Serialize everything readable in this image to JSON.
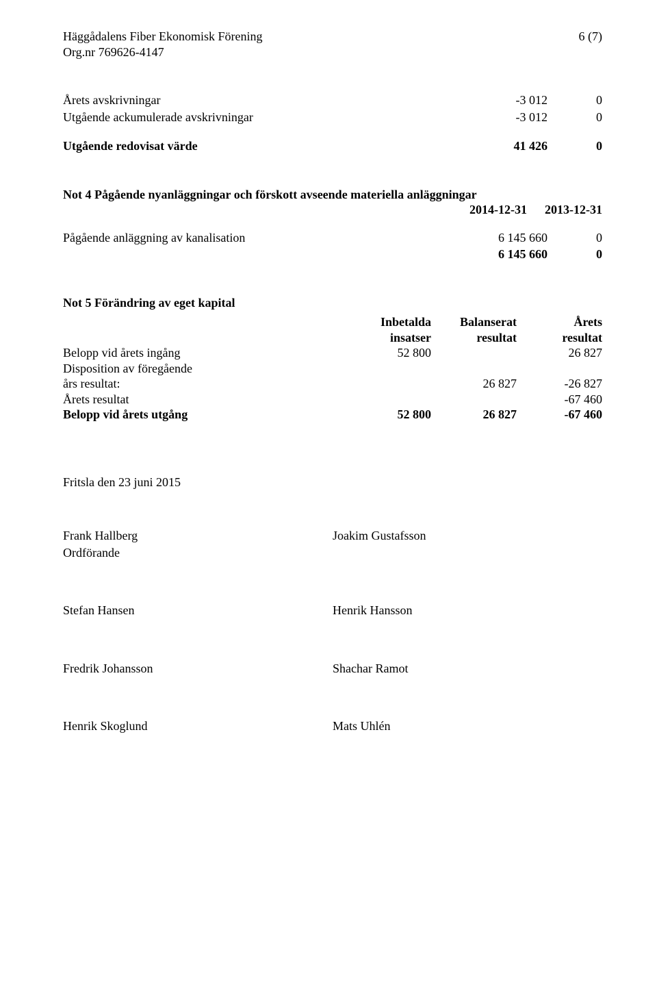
{
  "header": {
    "org_name": "Häggådalens Fiber Ekonomisk Förening",
    "org_number_line": "Org.nr 769626-4147",
    "page_number": "6 (7)"
  },
  "depreciation": {
    "r1": {
      "label": "Årets avskrivningar",
      "c1": "-3 012",
      "c2": "0"
    },
    "r2": {
      "label": "Utgående ackumulerade avskrivningar",
      "c1": "-3 012",
      "c2": "0"
    },
    "r3": {
      "label": "Utgående redovisat värde",
      "c1": "41 426",
      "c2": "0"
    }
  },
  "note4": {
    "title": "Not 4 Pågående nyanläggningar och förskott avseende materiella anläggningar",
    "date1": "2014-12-31",
    "date2": "2013-12-31",
    "r1": {
      "label": "Pågående anläggning av kanalisation",
      "c1": "6 145 660",
      "c2": "0"
    },
    "r2": {
      "label": "",
      "c1": "6 145 660",
      "c2": "0"
    }
  },
  "note5": {
    "title": "Not 5 Förändring av eget kapital",
    "head": {
      "c1a": "Inbetalda",
      "c1b": "insatser",
      "c2a": "Balanserat",
      "c2b": "resultat",
      "c3a": "Årets",
      "c3b": "resultat"
    },
    "rows": {
      "r1": {
        "label": "Belopp vid årets ingång",
        "c1": "52 800",
        "c2": "",
        "c3": "26 827"
      },
      "r2": {
        "label": "Disposition av föregående",
        "c1": "",
        "c2": "",
        "c3": ""
      },
      "r3": {
        "label": "års resultat:",
        "c1": "",
        "c2": "26 827",
        "c3": "-26 827"
      },
      "r4": {
        "label": "Årets resultat",
        "c1": "",
        "c2": "",
        "c3": "-67 460"
      },
      "r5": {
        "label": "Belopp vid årets utgång",
        "c1": "52 800",
        "c2": "26 827",
        "c3": "-67 460"
      }
    }
  },
  "sign": {
    "date_line": "Fritsla den 23 juni 2015",
    "s1": {
      "name": "Frank Hallberg",
      "role": "Ordförande"
    },
    "s2": {
      "name": "Joakim Gustafsson"
    },
    "s3": {
      "name": "Stefan Hansen"
    },
    "s4": {
      "name": "Henrik Hansson"
    },
    "s5": {
      "name": "Fredrik Johansson"
    },
    "s6": {
      "name": "Shachar Ramot"
    },
    "s7": {
      "name": "Henrik Skoglund"
    },
    "s8": {
      "name": "Mats Uhlén"
    }
  }
}
